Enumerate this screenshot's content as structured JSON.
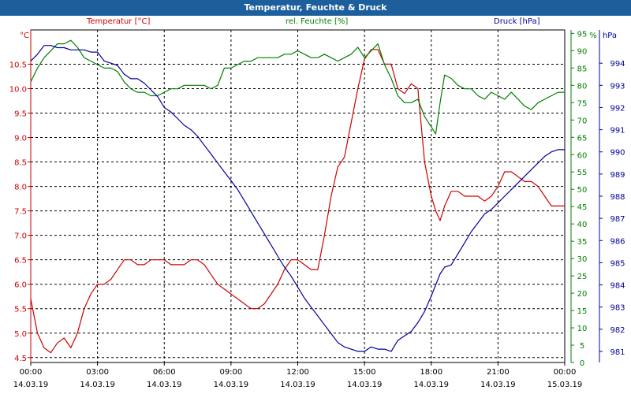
{
  "window": {
    "title": "Temperatur, Feuchte & Druck"
  },
  "chart_data": {
    "type": "line",
    "title": "Temperatur, Feuchte & Druck",
    "grid": true,
    "colors": {
      "temp": "#cc0000",
      "hum": "#008000",
      "press": "#000099",
      "titlebar": "#1c5f9c"
    },
    "axes": {
      "temp": {
        "label": "Temperatur [°C]",
        "unit": "°C",
        "range": [
          4.4,
          11.2
        ],
        "ticks": [
          "4.5",
          "5.0",
          "5.5",
          "6.0",
          "6.5",
          "7.0",
          "7.5",
          "8.0",
          "8.5",
          "9.0",
          "9.5",
          "10.0",
          "10.5"
        ]
      },
      "hum": {
        "label": "rel. Feuchte [%]",
        "unit": "%",
        "range": [
          0,
          96
        ],
        "ticks": [
          "0",
          "5",
          "10",
          "15",
          "20",
          "25",
          "30",
          "35",
          "40",
          "45",
          "50",
          "55",
          "60",
          "65",
          "70",
          "75",
          "80",
          "85",
          "90",
          "95"
        ]
      },
      "press": {
        "label": "Druck [hPa]",
        "unit": "hPa",
        "range": [
          980.5,
          995.5
        ],
        "ticks": [
          "981",
          "982",
          "983",
          "984",
          "985",
          "986",
          "987",
          "988",
          "989",
          "990",
          "991",
          "992",
          "993",
          "994"
        ]
      }
    },
    "x_ticks": [
      {
        "time": "00:00",
        "date": "14.03.19"
      },
      {
        "time": "03:00",
        "date": "14.03.19"
      },
      {
        "time": "06:00",
        "date": "14.03.19"
      },
      {
        "time": "09:00",
        "date": "14.03.19"
      },
      {
        "time": "12:00",
        "date": "14.03.19"
      },
      {
        "time": "15:00",
        "date": "14.03.19"
      },
      {
        "time": "18:00",
        "date": "14.03.19"
      },
      {
        "time": "21:00",
        "date": "14.03.19"
      },
      {
        "time": "00:00",
        "date": "15.03.19"
      }
    ],
    "series": [
      {
        "name": "Temperatur [°C]",
        "axis": "temp",
        "x": [
          0,
          0.3,
          0.6,
          0.9,
          1.2,
          1.5,
          1.8,
          2.1,
          2.4,
          2.7,
          3.0,
          3.3,
          3.6,
          3.9,
          4.2,
          4.5,
          4.8,
          5.1,
          5.4,
          5.7,
          6.0,
          6.3,
          6.6,
          6.9,
          7.2,
          7.5,
          7.8,
          8.1,
          8.4,
          8.7,
          9.0,
          9.3,
          9.6,
          9.9,
          10.2,
          10.5,
          10.8,
          11.1,
          11.4,
          11.7,
          12.0,
          12.3,
          12.6,
          12.9,
          13.2,
          13.5,
          13.8,
          14.1,
          14.4,
          14.7,
          15.0,
          15.3,
          15.6,
          15.9,
          16.2,
          16.5,
          16.8,
          17.1,
          17.4,
          17.7,
          18.0,
          18.2,
          18.4,
          18.6,
          18.9,
          19.2,
          19.5,
          19.8,
          20.1,
          20.4,
          20.7,
          21.0,
          21.3,
          21.6,
          21.9,
          22.2,
          22.5,
          22.8,
          23.1,
          23.4,
          23.7,
          24.0
        ],
        "y": [
          5.7,
          5.0,
          4.7,
          4.6,
          4.8,
          4.9,
          4.7,
          5.0,
          5.5,
          5.8,
          6.0,
          6.0,
          6.1,
          6.3,
          6.5,
          6.5,
          6.4,
          6.4,
          6.5,
          6.5,
          6.5,
          6.4,
          6.4,
          6.4,
          6.5,
          6.5,
          6.4,
          6.2,
          6.0,
          5.9,
          5.8,
          5.7,
          5.6,
          5.5,
          5.5,
          5.6,
          5.8,
          6.0,
          6.3,
          6.5,
          6.5,
          6.4,
          6.3,
          6.3,
          7.0,
          7.8,
          8.4,
          8.6,
          9.3,
          10.0,
          10.6,
          10.8,
          10.8,
          10.5,
          10.5,
          10.0,
          9.9,
          10.1,
          10.0,
          8.5,
          7.8,
          7.5,
          7.3,
          7.6,
          7.9,
          7.9,
          7.8,
          7.8,
          7.8,
          7.7,
          7.8,
          8.0,
          8.3,
          8.3,
          8.2,
          8.1,
          8.1,
          8.0,
          7.8,
          7.6,
          7.6,
          7.6
        ]
      },
      {
        "name": "rel. Feuchte [%]",
        "axis": "hum",
        "x": [
          0,
          0.3,
          0.6,
          0.9,
          1.2,
          1.5,
          1.8,
          2.1,
          2.4,
          2.7,
          3.0,
          3.3,
          3.6,
          3.9,
          4.2,
          4.5,
          4.8,
          5.1,
          5.4,
          5.7,
          6.0,
          6.3,
          6.6,
          6.9,
          7.2,
          7.5,
          7.8,
          8.1,
          8.4,
          8.7,
          9.0,
          9.3,
          9.6,
          9.9,
          10.2,
          10.5,
          10.8,
          11.1,
          11.4,
          11.7,
          12.0,
          12.3,
          12.6,
          12.9,
          13.2,
          13.5,
          13.8,
          14.1,
          14.4,
          14.7,
          15.0,
          15.3,
          15.6,
          15.9,
          16.2,
          16.5,
          16.8,
          17.1,
          17.4,
          17.7,
          18.0,
          18.2,
          18.4,
          18.6,
          18.9,
          19.2,
          19.5,
          19.8,
          20.1,
          20.4,
          20.7,
          21.0,
          21.3,
          21.6,
          21.9,
          22.2,
          22.5,
          22.8,
          23.1,
          23.4,
          23.7,
          24.0
        ],
        "y": [
          81,
          85,
          88,
          90,
          92,
          92,
          93,
          91,
          88,
          87,
          86,
          85,
          85,
          84,
          81,
          79,
          78,
          78,
          77,
          77,
          78,
          79,
          79,
          80,
          80,
          80,
          80,
          79,
          80,
          85,
          85,
          86,
          87,
          87,
          88,
          88,
          88,
          88,
          89,
          89,
          90,
          89,
          88,
          88,
          89,
          88,
          87,
          88,
          89,
          91,
          88,
          90,
          92,
          86,
          82,
          77,
          75,
          75,
          76,
          71,
          68,
          66,
          75,
          83,
          82,
          80,
          79,
          79,
          77,
          76,
          78,
          77,
          76,
          78,
          76,
          74,
          73,
          75,
          76,
          77,
          78,
          78
        ]
      },
      {
        "name": "Druck [hPa]",
        "axis": "press",
        "x": [
          0,
          0.3,
          0.6,
          0.9,
          1.2,
          1.5,
          1.8,
          2.1,
          2.4,
          2.7,
          3.0,
          3.3,
          3.6,
          3.9,
          4.2,
          4.5,
          4.8,
          5.1,
          5.4,
          5.7,
          6.0,
          6.3,
          6.6,
          6.9,
          7.2,
          7.5,
          7.8,
          8.1,
          8.4,
          8.7,
          9.0,
          9.3,
          9.6,
          9.9,
          10.2,
          10.5,
          10.8,
          11.1,
          11.4,
          11.7,
          12.0,
          12.3,
          12.6,
          12.9,
          13.2,
          13.5,
          13.8,
          14.1,
          14.4,
          14.7,
          15.0,
          15.3,
          15.6,
          15.9,
          16.2,
          16.5,
          16.8,
          17.1,
          17.4,
          17.7,
          18.0,
          18.2,
          18.4,
          18.6,
          18.9,
          19.2,
          19.5,
          19.8,
          20.1,
          20.4,
          20.7,
          21.0,
          21.3,
          21.6,
          21.9,
          22.2,
          22.5,
          22.8,
          23.1,
          23.4,
          23.7,
          24.0
        ],
        "y": [
          994.1,
          994.4,
          994.8,
          994.8,
          994.7,
          994.7,
          994.6,
          994.6,
          994.6,
          994.5,
          994.5,
          994.1,
          994.0,
          993.9,
          993.5,
          993.3,
          993.3,
          993.1,
          992.8,
          992.5,
          992.0,
          991.8,
          991.5,
          991.2,
          991.0,
          990.7,
          990.3,
          989.9,
          989.5,
          989.1,
          988.7,
          988.3,
          987.8,
          987.3,
          986.8,
          986.3,
          985.8,
          985.3,
          984.8,
          984.4,
          983.9,
          983.4,
          983.0,
          982.6,
          982.2,
          981.8,
          981.4,
          981.2,
          981.1,
          981.0,
          981.0,
          981.2,
          981.1,
          981.1,
          981.0,
          981.5,
          981.7,
          981.9,
          982.3,
          982.8,
          983.5,
          984.0,
          984.5,
          984.8,
          984.9,
          985.4,
          985.9,
          986.4,
          986.8,
          987.2,
          987.4,
          987.7,
          988.0,
          988.3,
          988.6,
          988.9,
          989.2,
          989.5,
          989.8,
          990.0,
          990.1,
          990.1
        ]
      }
    ]
  }
}
